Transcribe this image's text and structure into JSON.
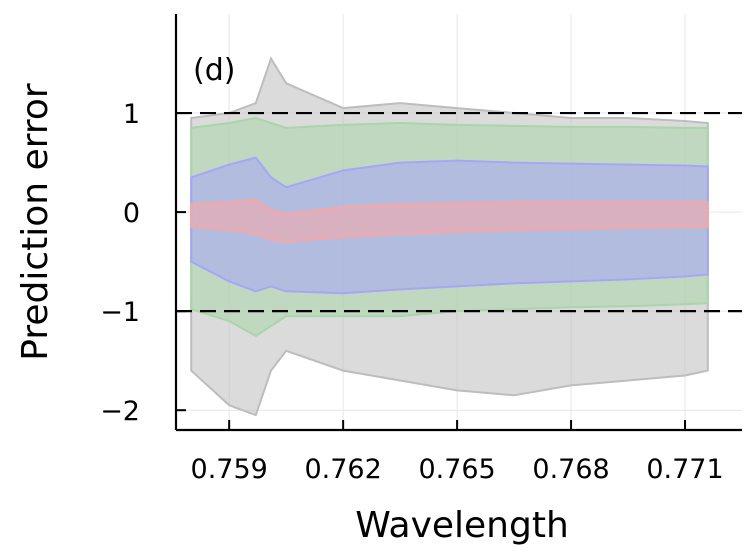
{
  "chart_data": {
    "type": "area",
    "panel_label": "(d)",
    "xlabel": "Wavelength",
    "ylabel": "Prediction error",
    "xlim": [
      0.7576,
      0.7725
    ],
    "ylim": [
      -2.2,
      2.0
    ],
    "x_ticks": [
      0.759,
      0.762,
      0.765,
      0.768,
      0.771
    ],
    "x_tick_labels": [
      "0.759",
      "0.762",
      "0.765",
      "0.768",
      "0.771"
    ],
    "y_ticks": [
      -2,
      -1,
      0,
      1
    ],
    "y_tick_labels": [
      "−2",
      "−1",
      "0",
      "1"
    ],
    "reference_lines": [
      1,
      -1
    ],
    "grid": true,
    "legend": "none",
    "colors": {
      "gray": "#bdbdbd",
      "green": "#a9d5a9",
      "blue": "#a6a6f7",
      "red": "#f7a6a6",
      "reference": "#000000"
    },
    "series": [
      {
        "color": "gray",
        "x": [
          0.758,
          0.759,
          0.7597,
          0.7601,
          0.7605,
          0.762,
          0.7635,
          0.765,
          0.7665,
          0.768,
          0.7695,
          0.771,
          0.7716
        ],
        "upper": [
          0.95,
          1.0,
          1.1,
          1.55,
          1.3,
          1.05,
          1.1,
          1.05,
          1.0,
          0.95,
          0.95,
          0.92,
          0.9
        ],
        "lower": [
          -1.6,
          -1.95,
          -2.05,
          -1.6,
          -1.4,
          -1.6,
          -1.7,
          -1.8,
          -1.85,
          -1.75,
          -1.7,
          -1.65,
          -1.6
        ]
      },
      {
        "color": "green",
        "x": [
          0.758,
          0.759,
          0.7597,
          0.7601,
          0.7605,
          0.762,
          0.7635,
          0.765,
          0.7665,
          0.768,
          0.7695,
          0.771,
          0.7716
        ],
        "upper": [
          0.85,
          0.9,
          0.95,
          0.9,
          0.85,
          0.88,
          0.9,
          0.88,
          0.87,
          0.86,
          0.86,
          0.85,
          0.85
        ],
        "lower": [
          -0.98,
          -1.1,
          -1.25,
          -1.15,
          -1.05,
          -1.05,
          -1.05,
          -1.0,
          -0.98,
          -0.96,
          -0.95,
          -0.93,
          -0.92
        ]
      },
      {
        "color": "blue",
        "x": [
          0.758,
          0.759,
          0.7597,
          0.7601,
          0.7605,
          0.762,
          0.7635,
          0.765,
          0.7665,
          0.768,
          0.7695,
          0.771,
          0.7716
        ],
        "upper": [
          0.35,
          0.48,
          0.55,
          0.35,
          0.25,
          0.42,
          0.5,
          0.52,
          0.5,
          0.49,
          0.48,
          0.47,
          0.46
        ],
        "lower": [
          -0.5,
          -0.7,
          -0.8,
          -0.75,
          -0.8,
          -0.82,
          -0.78,
          -0.75,
          -0.72,
          -0.7,
          -0.68,
          -0.65,
          -0.63
        ]
      },
      {
        "color": "red",
        "x": [
          0.758,
          0.759,
          0.7597,
          0.7601,
          0.7605,
          0.762,
          0.7635,
          0.765,
          0.7665,
          0.768,
          0.7695,
          0.771,
          0.7716
        ],
        "upper": [
          0.08,
          0.1,
          0.12,
          0.02,
          -0.02,
          0.05,
          0.08,
          0.09,
          0.1,
          0.1,
          0.1,
          0.1,
          0.1
        ],
        "lower": [
          -0.15,
          -0.18,
          -0.22,
          -0.28,
          -0.3,
          -0.25,
          -0.22,
          -0.2,
          -0.18,
          -0.17,
          -0.16,
          -0.15,
          -0.15
        ]
      }
    ]
  }
}
